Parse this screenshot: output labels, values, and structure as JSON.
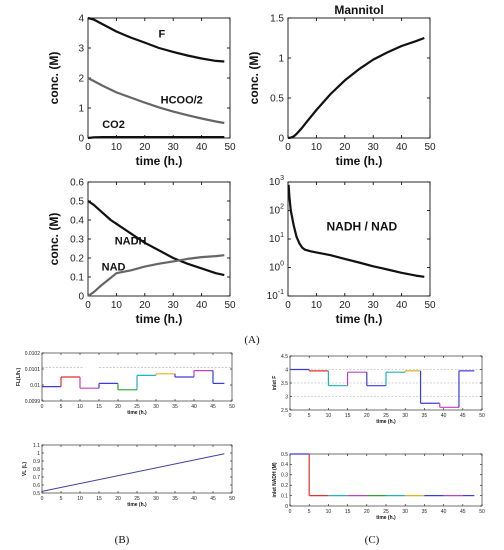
{
  "panel_labels": [
    "(A)",
    "(B)",
    "(C)"
  ],
  "chart_data": [
    {
      "id": "a1",
      "type": "line",
      "xlabel": "time (h.)",
      "ylabel": "conc. (M)",
      "xlim": [
        0,
        50
      ],
      "ylim": [
        0,
        4
      ],
      "xticks": [
        "0",
        "10",
        "20",
        "30",
        "40",
        "50"
      ],
      "yticks": [
        "0",
        "1",
        "2",
        "3",
        "4"
      ],
      "series": [
        {
          "name": "F",
          "color": "#111111",
          "x": [
            0,
            2,
            5,
            10,
            15,
            20,
            25,
            30,
            35,
            40,
            45,
            48
          ],
          "y": [
            4.0,
            3.95,
            3.8,
            3.55,
            3.35,
            3.18,
            3.0,
            2.87,
            2.75,
            2.65,
            2.57,
            2.55
          ]
        },
        {
          "name": "HCOO/2",
          "color": "#666666",
          "x": [
            0,
            2,
            5,
            10,
            15,
            20,
            25,
            30,
            35,
            40,
            45,
            48
          ],
          "y": [
            2.0,
            1.9,
            1.75,
            1.52,
            1.35,
            1.18,
            1.02,
            0.88,
            0.76,
            0.65,
            0.55,
            0.5
          ]
        },
        {
          "name": "CO2",
          "color": "#111111",
          "x": [
            0,
            2,
            5,
            10,
            20,
            30,
            40,
            48
          ],
          "y": [
            0,
            0.02,
            0.03,
            0.03,
            0.03,
            0.03,
            0.03,
            0.03
          ]
        }
      ]
    },
    {
      "id": "a2",
      "type": "line",
      "title": "Mannitol",
      "xlabel": "time (h.)",
      "ylabel": "conc. (M)",
      "xlim": [
        0,
        50
      ],
      "ylim": [
        0,
        1.5
      ],
      "xticks": [
        "0",
        "10",
        "20",
        "30",
        "40",
        "50"
      ],
      "yticks": [
        "0",
        "0.5",
        "1",
        "1.5"
      ],
      "series": [
        {
          "name": "",
          "color": "#111111",
          "x": [
            0,
            1,
            2,
            3,
            5,
            7,
            10,
            15,
            20,
            25,
            30,
            35,
            40,
            45,
            48
          ],
          "y": [
            0,
            0.005,
            0.02,
            0.05,
            0.13,
            0.22,
            0.35,
            0.55,
            0.72,
            0.86,
            0.98,
            1.07,
            1.15,
            1.21,
            1.25
          ]
        }
      ]
    },
    {
      "id": "a3",
      "type": "line",
      "xlabel": "time (h.)",
      "ylabel": "conc. (M)",
      "xlim": [
        0,
        50
      ],
      "ylim": [
        0,
        0.6
      ],
      "xticks": [
        "0",
        "10",
        "20",
        "30",
        "40",
        "50"
      ],
      "yticks": [
        "0",
        "0.1",
        "0.2",
        "0.3",
        "0.4",
        "0.5",
        "0.6"
      ],
      "series": [
        {
          "name": "NADH",
          "color": "#111111",
          "x": [
            0,
            2,
            5,
            8,
            10,
            15,
            20,
            25,
            30,
            35,
            40,
            45,
            48
          ],
          "y": [
            0.5,
            0.48,
            0.44,
            0.4,
            0.38,
            0.33,
            0.28,
            0.24,
            0.2,
            0.17,
            0.145,
            0.12,
            0.11
          ]
        },
        {
          "name": "NAD",
          "color": "#666666",
          "x": [
            0,
            2,
            5,
            8,
            10,
            15,
            20,
            25,
            30,
            35,
            40,
            45,
            48
          ],
          "y": [
            0.0,
            0.02,
            0.06,
            0.095,
            0.12,
            0.135,
            0.155,
            0.17,
            0.182,
            0.195,
            0.205,
            0.21,
            0.215
          ]
        }
      ]
    },
    {
      "id": "a4",
      "type": "line",
      "title": "NADH / NAD",
      "xlabel": "time (h.)",
      "ylabel": "",
      "xlim": [
        0,
        50
      ],
      "ylim_exp": [
        -1,
        3
      ],
      "log_y": true,
      "xticks": [
        "0",
        "10",
        "20",
        "30",
        "40",
        "50"
      ],
      "yticks": [
        {
          "base": "10",
          "exp": "-1"
        },
        {
          "base": "10",
          "exp": "0"
        },
        {
          "base": "10",
          "exp": "1"
        },
        {
          "base": "10",
          "exp": "2"
        },
        {
          "base": "10",
          "exp": "3"
        }
      ],
      "series": [
        {
          "name": "",
          "color": "#111111",
          "x": [
            0.2,
            0.5,
            1,
            2,
            3,
            4,
            5,
            6,
            8,
            10,
            15,
            20,
            25,
            30,
            35,
            40,
            45,
            48
          ],
          "y": [
            800,
            300,
            100,
            30,
            12,
            7,
            5,
            4.2,
            3.7,
            3.4,
            2.7,
            2.0,
            1.5,
            1.1,
            0.85,
            0.65,
            0.52,
            0.47
          ]
        }
      ]
    },
    {
      "id": "b1",
      "type": "line",
      "xlabel": "time (h.)",
      "ylabel": "FL(L/h.)",
      "xlim": [
        0,
        50
      ],
      "ylim": [
        0.0099,
        0.0102
      ],
      "xticks": [
        "0",
        "5",
        "10",
        "15",
        "20",
        "25",
        "30",
        "35",
        "40",
        "45",
        "50"
      ],
      "yticks": [
        "0.0099",
        "0.01",
        "0.0101",
        "0.0102"
      ],
      "ref": [
        {
          "x": [
            0,
            11
          ],
          "y": [
            0.01011,
            0.01011
          ]
        },
        {
          "x": [
            15,
            50
          ],
          "y": [
            0.01011,
            0.01011
          ]
        }
      ],
      "segments": [
        {
          "x": [
            0,
            5
          ],
          "y": [
            0.00999,
            0.00999
          ],
          "color": "#3b3bdc"
        },
        {
          "x": [
            5,
            10
          ],
          "y": [
            0.01005,
            0.01005
          ],
          "color": "#e03030"
        },
        {
          "x": [
            10,
            15
          ],
          "y": [
            0.00998,
            0.00998
          ],
          "color": "#c040c0"
        },
        {
          "x": [
            15,
            20
          ],
          "y": [
            0.01001,
            0.01001
          ],
          "color": "#3b3bdc"
        },
        {
          "x": [
            20,
            25
          ],
          "y": [
            0.00997,
            0.00997
          ],
          "color": "#30a030"
        },
        {
          "x": [
            25,
            30
          ],
          "y": [
            0.01006,
            0.01006
          ],
          "color": "#20b0c0"
        },
        {
          "x": [
            30,
            35
          ],
          "y": [
            0.01007,
            0.01007
          ],
          "color": "#e0b020"
        },
        {
          "x": [
            35,
            40
          ],
          "y": [
            0.01005,
            0.01005
          ],
          "color": "#3b3bdc"
        },
        {
          "x": [
            40,
            45
          ],
          "y": [
            0.01009,
            0.01009
          ],
          "color": "#c040c0"
        },
        {
          "x": [
            45,
            48
          ],
          "y": [
            0.01001,
            0.01001
          ],
          "color": "#3b3bdc"
        }
      ]
    },
    {
      "id": "b2",
      "type": "line",
      "xlabel": "time (h.)",
      "ylabel": "VL (L)",
      "xlim": [
        0,
        50
      ],
      "ylim": [
        0.5,
        1.1
      ],
      "xticks": [
        "0",
        "5",
        "10",
        "15",
        "20",
        "25",
        "30",
        "35",
        "40",
        "45",
        "50"
      ],
      "yticks": [
        "0.5",
        "0.6",
        "0.7",
        "0.8",
        "0.9",
        "1",
        "1.1"
      ],
      "series": [
        {
          "name": "",
          "color": "#4040a0",
          "x": [
            0,
            48
          ],
          "y": [
            0.52,
            0.99
          ]
        }
      ]
    },
    {
      "id": "c1",
      "type": "line",
      "xlabel": "time (h.)",
      "ylabel": "inlet F",
      "xlim": [
        0,
        50
      ],
      "ylim": [
        2.5,
        4.5
      ],
      "xticks": [
        "0",
        "5",
        "10",
        "15",
        "20",
        "25",
        "30",
        "35",
        "40",
        "45",
        "50"
      ],
      "yticks": [
        "2.5",
        "3",
        "3.5",
        "4",
        "4.5"
      ],
      "ref": [
        {
          "x": [
            0,
            50
          ],
          "y": [
            4.0,
            4.0
          ]
        },
        {
          "x": [
            0,
            50
          ],
          "y": [
            3.5,
            3.5
          ]
        },
        {
          "x": [
            0,
            50
          ],
          "y": [
            3.0,
            3.0
          ]
        }
      ],
      "segments": [
        {
          "x": [
            0,
            5
          ],
          "y": [
            4.0,
            4.0
          ],
          "color": "#3b3bdc"
        },
        {
          "x": [
            5,
            10
          ],
          "y": [
            3.95,
            3.95
          ],
          "color": "#e03030"
        },
        {
          "x": [
            10,
            15
          ],
          "y": [
            3.4,
            3.4
          ],
          "color": "#20b0c0"
        },
        {
          "x": [
            15,
            20
          ],
          "y": [
            3.9,
            3.9
          ],
          "color": "#c040c0"
        },
        {
          "x": [
            20,
            25
          ],
          "y": [
            3.4,
            3.4
          ],
          "color": "#3b3bdc"
        },
        {
          "x": [
            25,
            30
          ],
          "y": [
            3.9,
            3.9
          ],
          "color": "#20b0c0"
        },
        {
          "x": [
            30,
            34
          ],
          "y": [
            3.95,
            3.95
          ],
          "color": "#e0b020"
        },
        {
          "x": [
            34,
            39
          ],
          "y": [
            2.75,
            2.75
          ],
          "color": "#3b3bdc"
        },
        {
          "x": [
            39,
            44
          ],
          "y": [
            2.6,
            2.6
          ],
          "color": "#c040c0"
        },
        {
          "x": [
            44,
            48
          ],
          "y": [
            3.95,
            3.95
          ],
          "color": "#3b3bdc"
        }
      ]
    },
    {
      "id": "c2",
      "type": "line",
      "xlabel": "time (h.)",
      "ylabel": "inlet NADH (M)",
      "xlim": [
        0,
        50
      ],
      "ylim": [
        0,
        0.5
      ],
      "xticks": [
        "0",
        "5",
        "10",
        "15",
        "20",
        "25",
        "30",
        "35",
        "40",
        "45",
        "50"
      ],
      "yticks": [
        "0",
        "0.1",
        "0.2",
        "0.3",
        "0.4",
        "0.5"
      ],
      "segments": [
        {
          "x": [
            0,
            5
          ],
          "y": [
            0.5,
            0.5
          ],
          "color": "#3b3bdc"
        },
        {
          "x": [
            5,
            10
          ],
          "y": [
            0.1,
            0.1
          ],
          "color": "#e03030"
        },
        {
          "x": [
            10,
            15
          ],
          "y": [
            0.1,
            0.1
          ],
          "color": "#20b0c0"
        },
        {
          "x": [
            15,
            20
          ],
          "y": [
            0.1,
            0.1
          ],
          "color": "#c040c0"
        },
        {
          "x": [
            20,
            25
          ],
          "y": [
            0.1,
            0.1
          ],
          "color": "#30a030"
        },
        {
          "x": [
            25,
            30
          ],
          "y": [
            0.1,
            0.1
          ],
          "color": "#20b0c0"
        },
        {
          "x": [
            30,
            35
          ],
          "y": [
            0.1,
            0.1
          ],
          "color": "#e0b020"
        },
        {
          "x": [
            35,
            40
          ],
          "y": [
            0.1,
            0.1
          ],
          "color": "#3b3bdc"
        },
        {
          "x": [
            40,
            45
          ],
          "y": [
            0.1,
            0.1
          ],
          "color": "#c040c0"
        },
        {
          "x": [
            45,
            48
          ],
          "y": [
            0.1,
            0.1
          ],
          "color": "#3b3bdc"
        }
      ]
    }
  ]
}
